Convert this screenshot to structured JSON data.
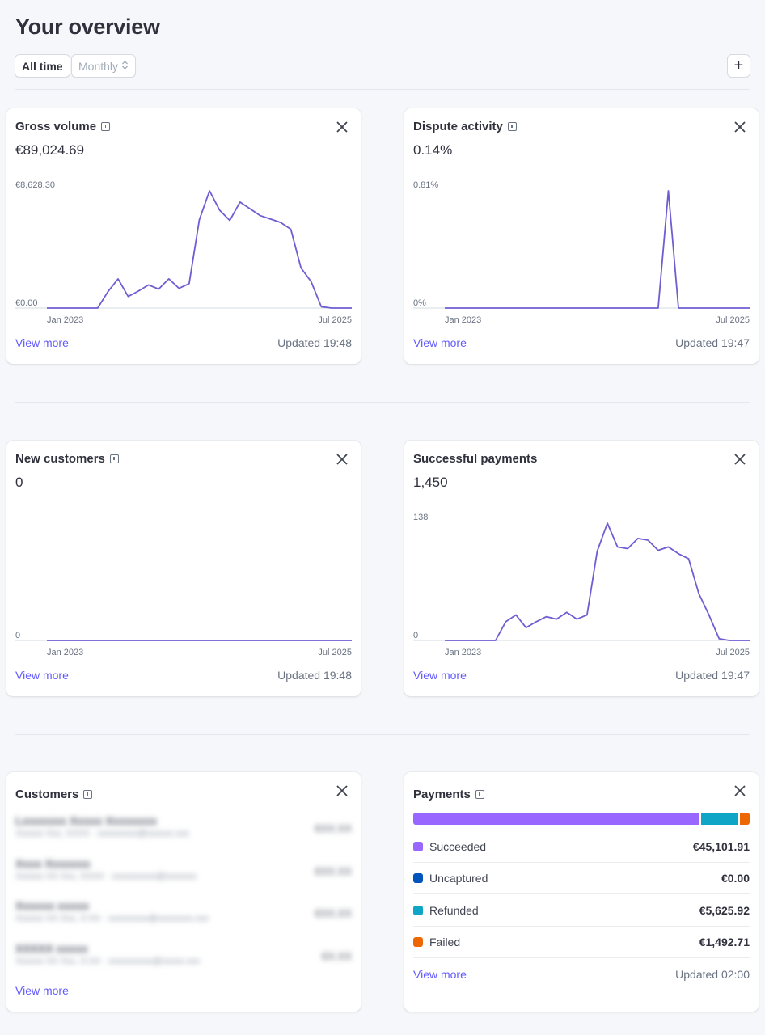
{
  "header": {
    "title": "Your overview",
    "filter_all": "All time",
    "filter_period": "Monthly",
    "add_label": "+"
  },
  "colors": {
    "accent": "#635bff",
    "line": "#6e5ed2",
    "succeeded": "#9966ff",
    "uncaptured": "#0055bc",
    "refunded": "#0ea5c6",
    "failed": "#ed6804"
  },
  "cards": {
    "gross_volume": {
      "title": "Gross volume",
      "value": "€89,024.69",
      "y_max_label": "€8,628.30",
      "y_min_label": "€0.00",
      "x_start": "Jan 2023",
      "x_end": "Jul 2025",
      "view_more": "View more",
      "updated": "Updated 19:48"
    },
    "dispute_activity": {
      "title": "Dispute activity",
      "value": "0.14%",
      "y_max_label": "0.81%",
      "y_min_label": "0%",
      "x_start": "Jan 2023",
      "x_end": "Jul 2025",
      "view_more": "View more",
      "updated": "Updated 19:47"
    },
    "new_customers": {
      "title": "New customers",
      "value": "0",
      "y_min_label": "0",
      "x_start": "Jan 2023",
      "x_end": "Jul 2025",
      "view_more": "View more",
      "updated": "Updated 19:48"
    },
    "successful_payments": {
      "title": "Successful payments",
      "value": "1,450",
      "y_max_label": "138",
      "y_min_label": "0",
      "x_start": "Jan 2023",
      "x_end": "Jul 2025",
      "view_more": "View more",
      "updated": "Updated 19:47"
    },
    "customers": {
      "title": "Customers",
      "view_more": "View more"
    },
    "payments": {
      "title": "Payments",
      "rows": [
        {
          "label": "Succeeded",
          "amount": "€45,101.91",
          "color": "#9966ff"
        },
        {
          "label": "Uncaptured",
          "amount": "€0.00",
          "color": "#0055bc"
        },
        {
          "label": "Refunded",
          "amount": "€5,625.92",
          "color": "#0ea5c6"
        },
        {
          "label": "Failed",
          "amount": "€1,492.71",
          "color": "#ed6804"
        }
      ],
      "view_more": "View more",
      "updated": "Updated 02:00"
    }
  },
  "chart_data": [
    {
      "type": "line",
      "title": "Gross volume",
      "x_start": "Jan 2023",
      "x_end": "Jul 2025",
      "ylim": [
        0,
        8628.3
      ],
      "values": [
        0,
        0,
        0,
        0,
        0,
        0,
        1200,
        2150,
        850,
        1250,
        1700,
        1400,
        2150,
        1450,
        1800,
        6500,
        8628.3,
        7200,
        6450,
        7800,
        7300,
        6800,
        6550,
        6300,
        5800,
        2950,
        1950,
        100,
        0,
        0,
        0
      ]
    },
    {
      "type": "line",
      "title": "Dispute activity",
      "x_start": "Jan 2023",
      "x_end": "Jul 2025",
      "ylim": [
        0,
        0.81
      ],
      "values": [
        0,
        0,
        0,
        0,
        0,
        0,
        0,
        0,
        0,
        0,
        0,
        0,
        0,
        0,
        0,
        0,
        0,
        0,
        0,
        0,
        0,
        0,
        0.81,
        0,
        0,
        0,
        0,
        0,
        0,
        0,
        0
      ]
    },
    {
      "type": "line",
      "title": "New customers",
      "x_start": "Jan 2023",
      "x_end": "Jul 2025",
      "ylim": [
        0,
        1
      ],
      "values": [
        0,
        0,
        0,
        0,
        0,
        0,
        0,
        0,
        0,
        0,
        0,
        0,
        0,
        0,
        0,
        0,
        0,
        0,
        0,
        0,
        0,
        0,
        0,
        0,
        0,
        0,
        0,
        0,
        0,
        0,
        0
      ]
    },
    {
      "type": "line",
      "title": "Successful payments",
      "x_start": "Jan 2023",
      "x_end": "Jul 2025",
      "ylim": [
        0,
        138
      ],
      "values": [
        0,
        0,
        0,
        0,
        0,
        0,
        22,
        30,
        15,
        22,
        28,
        25,
        33,
        25,
        30,
        105,
        138,
        110,
        108,
        120,
        118,
        106,
        110,
        102,
        96,
        55,
        30,
        2,
        0,
        0,
        0
      ]
    }
  ]
}
